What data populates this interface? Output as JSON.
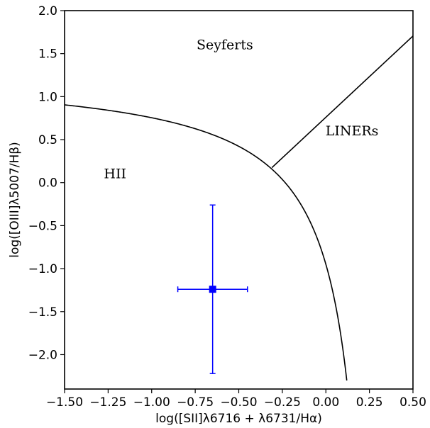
{
  "chart_data": {
    "type": "scatter",
    "title": "",
    "xlabel": "log([SII]λ6716 + λ6731/Hα)",
    "ylabel": "log([OIII]λ5007/Hβ)",
    "xlim": [
      -1.5,
      0.5
    ],
    "ylim": [
      -2.4,
      2.0
    ],
    "x_ticks": [
      -1.5,
      -1.25,
      -1.0,
      -0.75,
      -0.5,
      -0.25,
      0.0,
      0.25,
      0.5
    ],
    "x_tick_labels": [
      "−1.50",
      "−1.25",
      "−1.00",
      "−0.75",
      "−0.50",
      "−0.25",
      "0.00",
      "0.25",
      "0.50"
    ],
    "y_ticks": [
      -2.0,
      -1.5,
      -1.0,
      -0.5,
      0.0,
      0.5,
      1.0,
      1.5,
      2.0
    ],
    "y_tick_labels": [
      "−2.0",
      "−1.5",
      "−1.0",
      "−0.5",
      "0.0",
      "0.5",
      "1.0",
      "1.5",
      "2.0"
    ],
    "grid": false,
    "regions": [
      {
        "label": "Seyferts",
        "x": -0.58,
        "y": 1.55
      },
      {
        "label": "LINERs",
        "x": 0.15,
        "y": 0.55
      },
      {
        "label": "HII",
        "x": -1.21,
        "y": 0.05
      }
    ],
    "curves": [
      {
        "name": "kewley-max-starburst",
        "equation": "y = 0.72/(x - 0.32) + 1.30",
        "x_range": [
          -1.5,
          0.12
        ],
        "color": "#000000"
      },
      {
        "name": "seyfert-liner-line",
        "equation": "y = 1.89x + 0.76",
        "x_range": [
          -0.31,
          0.5
        ],
        "color": "#000000"
      }
    ],
    "points": [
      {
        "x": -0.65,
        "y": -1.24,
        "xerr": [
          0.2,
          0.2
        ],
        "yerr": [
          0.98,
          0.98
        ],
        "marker": "square",
        "color": "#0000ff"
      }
    ]
  }
}
